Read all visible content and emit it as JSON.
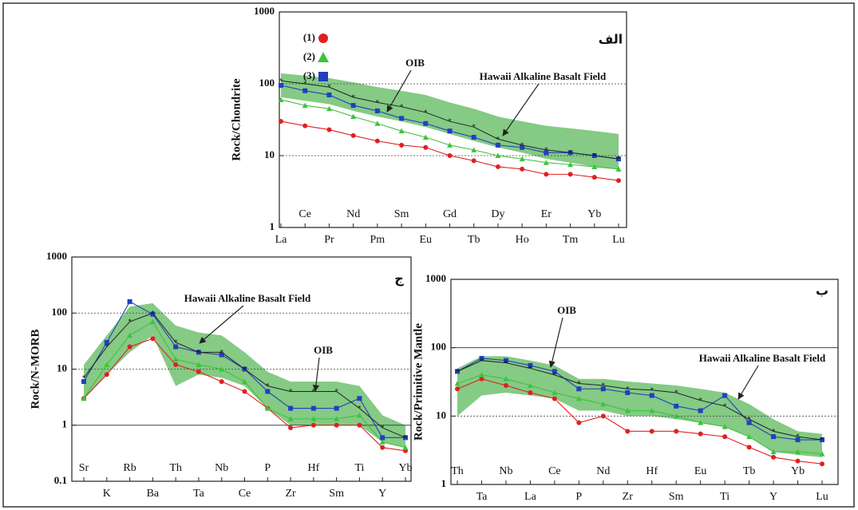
{
  "chart_data": [
    {
      "type": "line",
      "log": true,
      "panel": "الف",
      "y_label": "Rock/Chondrite",
      "categories": [
        "La",
        "Ce",
        "Pr",
        "Nd",
        "Pm",
        "Sm",
        "Eu",
        "Gd",
        "Tb",
        "Dy",
        "Ho",
        "Er",
        "Tm",
        "Yb",
        "Lu"
      ],
      "ylim": [
        1,
        1000
      ],
      "yticks": [
        1,
        10,
        100,
        1000
      ],
      "hlines": [
        {
          "value": 10,
          "style": "dotted"
        },
        {
          "value": 100,
          "style": "dotted"
        }
      ],
      "field": {
        "label": "Hawaii Alkaline Basalt Field",
        "color": "#5cb85c",
        "upper": [
          140,
          130,
          120,
          105,
          90,
          80,
          70,
          55,
          45,
          35,
          30,
          26,
          24,
          22,
          20
        ],
        "lower": [
          65,
          58,
          52,
          42,
          35,
          30,
          25,
          20,
          16,
          13,
          11,
          9,
          8,
          7,
          6.5
        ]
      },
      "oib": {
        "label": "OIB",
        "color": "#222222",
        "values": [
          110,
          100,
          90,
          65,
          55,
          48,
          40,
          30,
          25,
          17,
          14,
          12,
          11,
          10,
          9
        ]
      },
      "series": [
        {
          "name": "(1)",
          "color": "#e02020",
          "marker": "circle",
          "values": [
            30,
            26,
            23,
            19,
            16,
            14,
            13,
            10,
            8.5,
            7,
            6.5,
            5.5,
            5.5,
            5,
            4.5
          ]
        },
        {
          "name": "(2)",
          "color": "#3cc43c",
          "marker": "triangle",
          "values": [
            60,
            50,
            45,
            35,
            28,
            22,
            18,
            14,
            12,
            10,
            9,
            8,
            7.5,
            7,
            6.5
          ]
        },
        {
          "name": "(3)",
          "color": "#2040c0",
          "marker": "square",
          "values": [
            95,
            80,
            70,
            50,
            42,
            33,
            28,
            22,
            18,
            14,
            13,
            11,
            11,
            10,
            9
          ]
        }
      ]
    },
    {
      "type": "line",
      "log": true,
      "panel": "ج",
      "y_label": "Rock/N-MORB",
      "categories": [
        "Sr",
        "K",
        "Rb",
        "Ba",
        "Th",
        "Ta",
        "Nb",
        "Ce",
        "P",
        "Zr",
        "Hf",
        "Sm",
        "Ti",
        "Y",
        "Yb"
      ],
      "ylim": [
        0.1,
        1000
      ],
      "yticks": [
        0.1,
        1,
        10,
        100,
        1000
      ],
      "hlines": [
        {
          "value": 1,
          "style": "solid"
        },
        {
          "value": 10,
          "style": "dotted"
        },
        {
          "value": 100,
          "style": "dotted"
        }
      ],
      "field": {
        "label": "Hawaii Alkaline Basalt Field",
        "color": "#5cb85c",
        "upper": [
          12,
          40,
          130,
          150,
          60,
          45,
          40,
          20,
          9,
          6,
          6,
          6,
          5,
          1.5,
          1
        ],
        "lower": [
          3,
          8,
          20,
          40,
          5,
          8,
          7,
          5,
          2,
          1,
          1,
          1,
          1,
          0.5,
          0.4
        ]
      },
      "oib": {
        "label": "OIB",
        "color": "#222222",
        "values": [
          7,
          25,
          70,
          100,
          30,
          20,
          20,
          10,
          5,
          4,
          4,
          4,
          2,
          0.9,
          0.6
        ]
      },
      "series": [
        {
          "color": "#e02020",
          "marker": "circle",
          "values": [
            3,
            8,
            25,
            35,
            12,
            9,
            6,
            4,
            2,
            0.9,
            1,
            1,
            1,
            0.4,
            0.35
          ]
        },
        {
          "color": "#3cc43c",
          "marker": "triangle",
          "values": [
            3,
            12,
            40,
            70,
            15,
            12,
            10,
            6,
            2,
            1.3,
            1.3,
            1.3,
            1.5,
            0.5,
            0.4
          ]
        },
        {
          "color": "#2040c0",
          "marker": "square",
          "values": [
            6,
            30,
            160,
            95,
            25,
            20,
            18,
            10,
            4,
            2,
            2,
            2,
            3,
            0.6,
            0.6
          ]
        }
      ]
    },
    {
      "type": "line",
      "log": true,
      "panel": "ب",
      "y_label": "Rock/Primitive Mantle",
      "categories": [
        "Th",
        "Ta",
        "Nb",
        "La",
        "Ce",
        "P",
        "Nd",
        "Zr",
        "Hf",
        "Sm",
        "Eu",
        "Ti",
        "Tb",
        "Y",
        "Yb",
        "Lu"
      ],
      "ylim": [
        1,
        1000
      ],
      "yticks": [
        1,
        10,
        100,
        1000
      ],
      "hlines": [
        {
          "value": 10,
          "style": "dotted"
        },
        {
          "value": 100,
          "style": "solid"
        }
      ],
      "field": {
        "label": "Hawaii Alkaline Basalt Field",
        "color": "#5cb85c",
        "upper": [
          50,
          75,
          75,
          65,
          55,
          35,
          35,
          32,
          30,
          28,
          25,
          22,
          15,
          9,
          6,
          5.5
        ],
        "lower": [
          10,
          20,
          22,
          20,
          18,
          12,
          12,
          10,
          10,
          9,
          8,
          7,
          5,
          3,
          2.7,
          2.5
        ]
      },
      "oib": {
        "label": "OIB",
        "color": "#222222",
        "values": [
          45,
          65,
          60,
          50,
          40,
          30,
          28,
          25,
          24,
          22,
          17,
          14,
          9,
          6,
          5,
          4.5
        ]
      },
      "series": [
        {
          "color": "#e02020",
          "marker": "circle",
          "values": [
            25,
            35,
            28,
            22,
            18,
            8,
            10,
            6,
            6,
            6,
            5.5,
            5,
            3.5,
            2.5,
            2.2,
            2
          ]
        },
        {
          "color": "#3cc43c",
          "marker": "triangle",
          "values": [
            30,
            40,
            35,
            28,
            22,
            18,
            15,
            12,
            12,
            10,
            8,
            7,
            5,
            3,
            3,
            2.8
          ]
        },
        {
          "color": "#2040c0",
          "marker": "square",
          "values": [
            45,
            70,
            65,
            55,
            45,
            25,
            25,
            22,
            20,
            14,
            12,
            20,
            8,
            5,
            4.5,
            4.5
          ]
        }
      ]
    }
  ]
}
